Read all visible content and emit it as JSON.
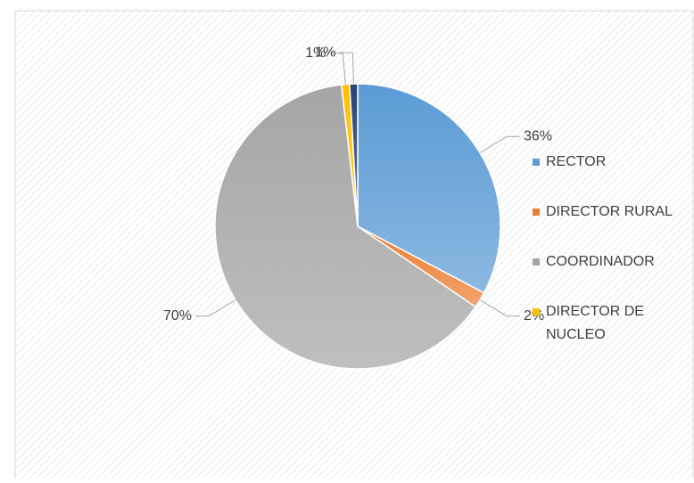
{
  "chart_data": {
    "type": "pie",
    "categories": [
      "RECTOR",
      "DIRECTOR RURAL",
      "COORDINADOR",
      "DIRECTOR DE NUCLEO",
      null
    ],
    "values": [
      36,
      2,
      70,
      1,
      1
    ],
    "value_labels": [
      "36%",
      "2%",
      "70%",
      "1%",
      "1%"
    ],
    "colors": [
      "#5b9bd5",
      "#ed7d31",
      "#a5a5a5",
      "#ffc000",
      "#264478"
    ],
    "legend": "right"
  }
}
